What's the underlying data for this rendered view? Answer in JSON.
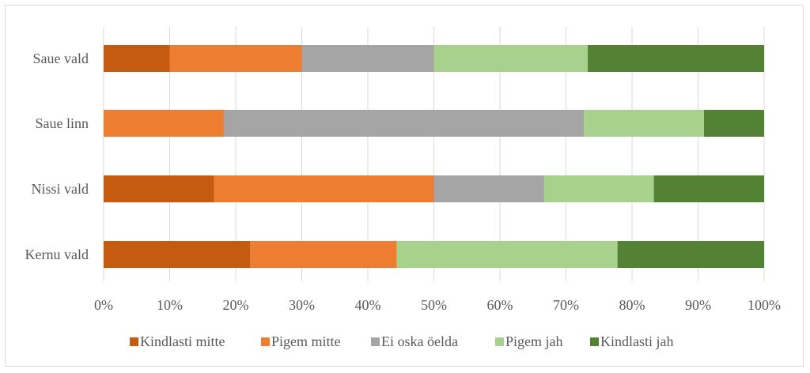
{
  "chart_data": {
    "type": "bar",
    "orientation": "horizontal",
    "stacked": "percent",
    "categories": [
      "Saue vald",
      "Saue linn",
      "Nissi vald",
      "Kernu vald"
    ],
    "series": [
      {
        "name": "Kindlasti mitte",
        "color": "#c55a11",
        "values": [
          10,
          0,
          16.7,
          22.2
        ]
      },
      {
        "name": "Pigem mitte",
        "color": "#ed7d31",
        "values": [
          20,
          18.2,
          33.3,
          22.2
        ]
      },
      {
        "name": "Ei oska öelda",
        "color": "#a5a5a5",
        "values": [
          20,
          54.5,
          16.7,
          0
        ]
      },
      {
        "name": "Pigem jah",
        "color": "#a9d18e",
        "values": [
          23.3,
          18.2,
          16.6,
          33.4
        ]
      },
      {
        "name": "Kindlasti jah",
        "color": "#548235",
        "values": [
          26.7,
          9.1,
          16.7,
          22.2
        ]
      }
    ],
    "xlim": [
      0,
      100
    ],
    "xticks": [
      "0%",
      "10%",
      "20%",
      "30%",
      "40%",
      "50%",
      "60%",
      "70%",
      "80%",
      "90%",
      "100%"
    ],
    "grid": "vertical",
    "legend_position": "bottom"
  }
}
